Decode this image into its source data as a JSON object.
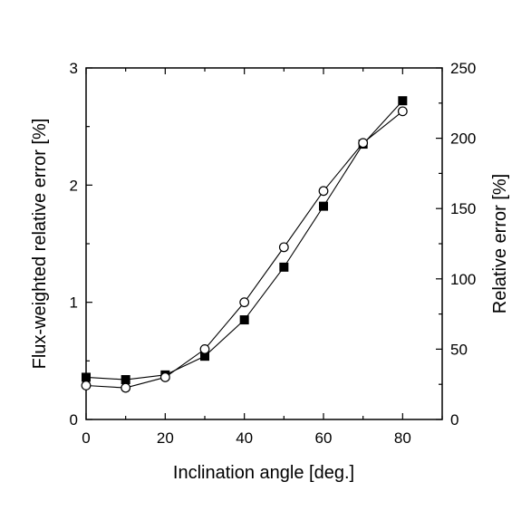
{
  "chart_data": {
    "type": "line",
    "xlabel": "Inclination angle [deg.]",
    "ylabel": "Flux-weighted relative error [%]",
    "ylabel_right": "Relative error [%]",
    "xlim": [
      0,
      90
    ],
    "ylim": [
      0,
      3
    ],
    "ylim_right": [
      0,
      250
    ],
    "x_ticks": [
      0,
      20,
      40,
      60,
      80
    ],
    "y_ticks": [
      0,
      1,
      2,
      3
    ],
    "y_ticks_right": [
      0,
      50,
      100,
      150,
      200,
      250
    ],
    "grid": false,
    "legend": "none",
    "series": [
      {
        "marker": "filled-square",
        "axis": "left",
        "color": "#000000",
        "x": [
          0,
          10,
          20,
          30,
          40,
          50,
          60,
          70,
          80
        ],
        "y": [
          0.36,
          0.34,
          0.38,
          0.54,
          0.85,
          1.3,
          1.82,
          2.35,
          2.72
        ]
      },
      {
        "marker": "open-circle",
        "axis": "left",
        "color": "#000000",
        "x": [
          0,
          10,
          20,
          30,
          40,
          50,
          60,
          70,
          80
        ],
        "y": [
          0.29,
          0.27,
          0.36,
          0.6,
          1.0,
          1.47,
          1.95,
          2.36,
          2.63
        ]
      }
    ]
  }
}
